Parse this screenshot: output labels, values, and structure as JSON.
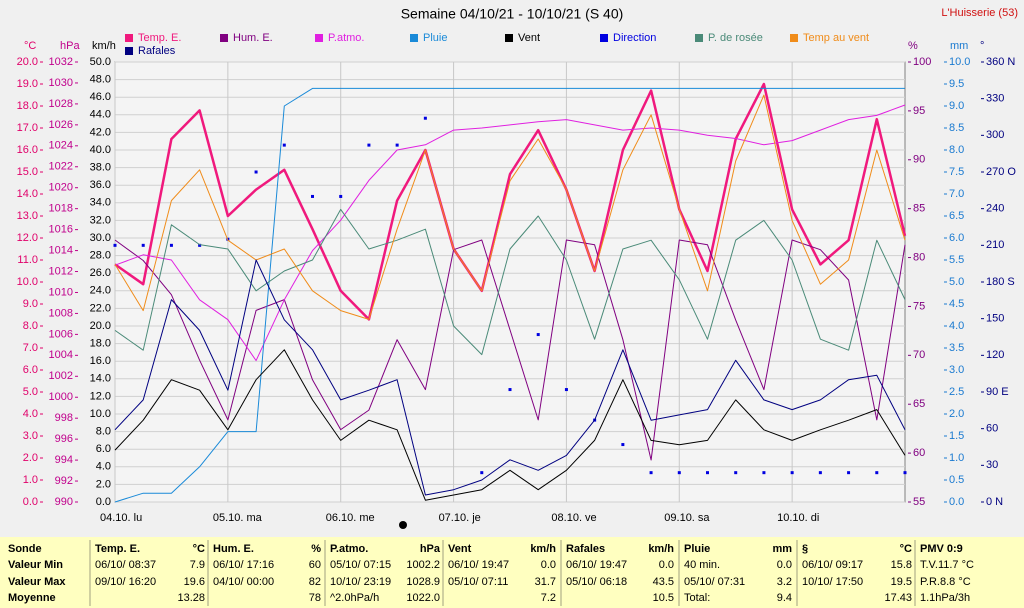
{
  "chart_data": {
    "type": "line",
    "title": "Semaine 04/10/21 - 10/10/21 (S 40)",
    "station": "L'Huisserie (53)",
    "xlim": [
      0,
      168
    ],
    "xticks": [
      {
        "value": 0,
        "label": "04.10. lu"
      },
      {
        "value": 24,
        "label": "05.10. ma"
      },
      {
        "value": 48,
        "label": "06.10. me"
      },
      {
        "value": 72,
        "label": "07.10. je"
      },
      {
        "value": 96,
        "label": "08.10. ve"
      },
      {
        "value": 120,
        "label": "09.10. sa"
      },
      {
        "value": 144,
        "label": "10.10. di"
      }
    ],
    "x": [
      0,
      6,
      12,
      18,
      24,
      30,
      36,
      42,
      48,
      54,
      60,
      66,
      72,
      78,
      84,
      90,
      96,
      102,
      108,
      114,
      120,
      126,
      132,
      138,
      144,
      150,
      156,
      162,
      168
    ],
    "axes": [
      {
        "unit": "°C",
        "color": "#e0006a",
        "lim": [
          0,
          20
        ],
        "ticks": [
          {
            "value": 0,
            "label": "0.0"
          },
          {
            "value": 1,
            "label": "1.0"
          },
          {
            "value": 2,
            "label": "2.0"
          },
          {
            "value": 3,
            "label": "3.0"
          },
          {
            "value": 4,
            "label": "4.0"
          },
          {
            "value": 5,
            "label": "5.0"
          },
          {
            "value": 6,
            "label": "6.0"
          },
          {
            "value": 7,
            "label": "7.0"
          },
          {
            "value": 8,
            "label": "8.0"
          },
          {
            "value": 9,
            "label": "9.0"
          },
          {
            "value": 10,
            "label": "10.0"
          },
          {
            "value": 11,
            "label": "11.0"
          },
          {
            "value": 12,
            "label": "12.0"
          },
          {
            "value": 13,
            "label": "13.0"
          },
          {
            "value": 14,
            "label": "14.0"
          },
          {
            "value": 15,
            "label": "15.0"
          },
          {
            "value": 16,
            "label": "16.0"
          },
          {
            "value": 17,
            "label": "17.0"
          },
          {
            "value": 18,
            "label": "18.0"
          },
          {
            "value": 19,
            "label": "19.0"
          },
          {
            "value": 20,
            "label": "20.0"
          }
        ]
      },
      {
        "unit": "hPa",
        "color": "#c0008c",
        "lim": [
          990,
          1032
        ],
        "ticks": [
          990,
          992,
          994,
          996,
          998,
          1000,
          1002,
          1004,
          1006,
          1008,
          1010,
          1012,
          1014,
          1016,
          1018,
          1020,
          1022,
          1024,
          1026,
          1028,
          1030,
          1032
        ]
      },
      {
        "unit": "km/h",
        "color": "#000000",
        "grid": true,
        "lim": [
          0,
          50
        ],
        "ticks": [
          {
            "value": 0,
            "label": "0.0"
          },
          {
            "value": 2,
            "label": "2.0"
          },
          {
            "value": 4,
            "label": "4.0"
          },
          {
            "value": 6,
            "label": "6.0"
          },
          {
            "value": 8,
            "label": "8.0"
          },
          {
            "value": 10,
            "label": "10.0"
          },
          {
            "value": 12,
            "label": "12.0"
          },
          {
            "value": 14,
            "label": "14.0"
          },
          {
            "value": 16,
            "label": "16.0"
          },
          {
            "value": 18,
            "label": "18.0"
          },
          {
            "value": 20,
            "label": "20.0"
          },
          {
            "value": 22,
            "label": "22.0"
          },
          {
            "value": 24,
            "label": "24.0"
          },
          {
            "value": 26,
            "label": "26.0"
          },
          {
            "value": 28,
            "label": "28.0"
          },
          {
            "value": 30,
            "label": "30.0"
          },
          {
            "value": 32,
            "label": "32.0"
          },
          {
            "value": 34,
            "label": "34.0"
          },
          {
            "value": 36,
            "label": "36.0"
          },
          {
            "value": 38,
            "label": "38.0"
          },
          {
            "value": 40,
            "label": "40.0"
          },
          {
            "value": 42,
            "label": "42.0"
          },
          {
            "value": 44,
            "label": "44.0"
          },
          {
            "value": 46,
            "label": "46.0"
          },
          {
            "value": 48,
            "label": "48.0"
          },
          {
            "value": 50,
            "label": "50.0"
          }
        ]
      },
      {
        "unit": "%",
        "color": "#800080",
        "lim": [
          55,
          100
        ],
        "ticks": [
          55,
          60,
          65,
          70,
          75,
          80,
          85,
          90,
          95,
          100
        ]
      },
      {
        "unit": "mm",
        "color": "#1a7ad0",
        "lim": [
          0,
          10
        ],
        "ticks": [
          {
            "value": 0,
            "label": "0.0"
          },
          {
            "value": 0.5,
            "label": "0.5"
          },
          {
            "value": 1,
            "label": "1.0"
          },
          {
            "value": 1.5,
            "label": "1.5"
          },
          {
            "value": 2,
            "label": "2.0"
          },
          {
            "value": 2.5,
            "label": "2.5"
          },
          {
            "value": 3,
            "label": "3.0"
          },
          {
            "value": 3.5,
            "label": "3.5"
          },
          {
            "value": 4,
            "label": "4.0"
          },
          {
            "value": 4.5,
            "label": "4.5"
          },
          {
            "value": 5,
            "label": "5.0"
          },
          {
            "value": 5.5,
            "label": "5.5"
          },
          {
            "value": 6,
            "label": "6.0"
          },
          {
            "value": 6.5,
            "label": "6.5"
          },
          {
            "value": 7,
            "label": "7.0"
          },
          {
            "value": 7.5,
            "label": "7.5"
          },
          {
            "value": 8,
            "label": "8.0"
          },
          {
            "value": 8.5,
            "label": "8.5"
          },
          {
            "value": 9,
            "label": "9.0"
          },
          {
            "value": 9.5,
            "label": "9.5"
          },
          {
            "value": 10,
            "label": "10.0"
          }
        ]
      },
      {
        "unit": "°",
        "color": "#000080",
        "lim": [
          0,
          360
        ],
        "ticks": [
          {
            "value": 0,
            "label": "0 N"
          },
          30,
          60,
          {
            "value": 90,
            "label": "90 E"
          },
          120,
          150,
          {
            "value": 180,
            "label": "180 S"
          },
          210,
          240,
          {
            "value": 270,
            "label": "270 O"
          },
          300,
          330,
          {
            "value": 360,
            "label": "360 N"
          }
        ]
      }
    ],
    "series": [
      {
        "name": "Temp. E.",
        "color": "#f0197d",
        "axis": "°C",
        "width": 2.5,
        "values": [
          10.8,
          9.9,
          16.5,
          17.8,
          13.0,
          14.2,
          15.1,
          12.4,
          9.6,
          8.3,
          13.7,
          16.0,
          11.5,
          9.6,
          14.9,
          16.9,
          14.2,
          10.5,
          16.0,
          18.7,
          13.3,
          10.5,
          16.5,
          19.0,
          13.3,
          10.8,
          11.9,
          17.4,
          12.1
        ]
      },
      {
        "name": "Hum. E.",
        "color": "#800080",
        "axis": "%",
        "width": 1,
        "values": [
          81.8,
          79.7,
          76.2,
          69.5,
          63.4,
          74.6,
          75.7,
          67.5,
          62.4,
          64.4,
          71.6,
          66.5,
          80.8,
          81.8,
          72.6,
          63.4,
          81.8,
          81.3,
          71.6,
          59.3,
          81.8,
          81.3,
          73.6,
          66.5,
          81.8,
          80.8,
          77.7,
          63.4,
          81.3
        ]
      },
      {
        "name": "P.atmo.",
        "color": "#e020e0",
        "axis": "hPa",
        "width": 1,
        "values": [
          1012.6,
          1013.6,
          1013.1,
          1009.3,
          1007.4,
          1003.5,
          1009.3,
          1014.0,
          1016.9,
          1020.7,
          1023.6,
          1024.1,
          1025.5,
          1025.7,
          1026.0,
          1026.3,
          1026.5,
          1026.0,
          1025.5,
          1025.7,
          1025.5,
          1025.0,
          1024.7,
          1024.1,
          1024.5,
          1025.5,
          1026.5,
          1026.9,
          1027.9
        ]
      },
      {
        "name": "Pluie",
        "color": "#1a8ad8",
        "axis": "mm",
        "width": 1,
        "values": [
          0.0,
          0.2,
          0.2,
          0.8,
          1.6,
          1.6,
          9.0,
          9.4,
          9.4,
          9.4,
          9.4,
          9.4,
          9.4,
          9.4,
          9.4,
          9.4,
          9.4,
          9.4,
          9.4,
          9.4,
          9.4,
          9.4,
          9.4,
          9.4,
          9.4,
          9.4,
          9.4,
          9.4,
          9.4
        ]
      },
      {
        "name": "Vent",
        "color": "#000000",
        "axis": "km/h",
        "width": 1,
        "values": [
          5.9,
          9.3,
          13.9,
          12.7,
          8.2,
          13.9,
          17.3,
          11.6,
          7.0,
          9.3,
          8.2,
          0.2,
          0.8,
          1.4,
          3.6,
          1.4,
          3.6,
          7.0,
          13.9,
          7.0,
          6.5,
          7.0,
          11.6,
          8.2,
          7.0,
          8.2,
          9.3,
          10.5,
          5.3
        ]
      },
      {
        "name": "Direction",
        "color": "#0000e0",
        "axis": "°",
        "style": "dots",
        "values": [
          210,
          210,
          210,
          210,
          215,
          270,
          292,
          250,
          250,
          292,
          292,
          314,
          null,
          24,
          92,
          137,
          92,
          67,
          47,
          24,
          24,
          24,
          24,
          24,
          24,
          24,
          24,
          24,
          24
        ]
      },
      {
        "name": "P. de rosée",
        "color": "#4a8a78",
        "axis": "°C",
        "width": 1,
        "values": [
          7.8,
          6.9,
          12.6,
          11.7,
          11.5,
          9.6,
          10.5,
          11.0,
          13.3,
          11.5,
          11.9,
          12.4,
          8.0,
          6.7,
          11.5,
          13.0,
          11.0,
          7.4,
          11.5,
          11.9,
          10.1,
          7.4,
          11.9,
          12.8,
          11.0,
          7.4,
          6.9,
          11.9,
          9.2
        ]
      },
      {
        "name": "Temp au vent",
        "color": "#f08c1a",
        "axis": "°C",
        "width": 1,
        "values": [
          10.8,
          8.7,
          13.7,
          15.1,
          11.9,
          11.0,
          11.5,
          9.6,
          8.7,
          8.3,
          12.4,
          16.0,
          11.5,
          9.6,
          14.6,
          16.5,
          14.2,
          10.5,
          15.1,
          17.6,
          13.3,
          9.6,
          15.5,
          18.5,
          12.8,
          9.9,
          11.0,
          16.0,
          11.9
        ]
      },
      {
        "name": "Rafales",
        "color": "#000080",
        "axis": "km/h",
        "width": 1,
        "values": [
          8.2,
          11.6,
          23.0,
          19.5,
          12.7,
          27.5,
          20.7,
          17.3,
          11.6,
          12.7,
          13.9,
          0.8,
          1.4,
          2.5,
          4.8,
          3.6,
          5.3,
          9.3,
          17.3,
          9.3,
          9.9,
          10.5,
          16.1,
          11.6,
          10.5,
          11.6,
          13.9,
          14.4,
          8.2
        ]
      }
    ]
  },
  "table": {
    "row_headers": [
      "Sonde",
      "Valeur Min",
      "Valeur Max",
      "Moyenne"
    ],
    "columns": [
      {
        "title": "Temp. E.",
        "unit": "°C",
        "rows": [
          {
            "left": "06/10/ 08:37",
            "right": "7.9"
          },
          {
            "left": "09/10/ 16:20",
            "right": "19.6"
          },
          {
            "right": "13.28"
          }
        ]
      },
      {
        "title": "Hum. E.",
        "unit": "%",
        "rows": [
          {
            "left": "06/10/ 17:16",
            "right": "60"
          },
          {
            "left": "04/10/ 00:00",
            "right": "82"
          },
          {
            "right": "78"
          }
        ]
      },
      {
        "title": "P.atmo.",
        "unit": "hPa",
        "rows": [
          {
            "left": "05/10/ 07:15",
            "right": "1002.2"
          },
          {
            "left": "10/10/ 23:19",
            "right": "1028.9"
          },
          {
            "left": "^2.0hPa/h",
            "right": "1022.0"
          }
        ]
      },
      {
        "title": "Vent",
        "unit": "km/h",
        "rows": [
          {
            "left": "06/10/ 19:47",
            "right": "0.0"
          },
          {
            "left": "05/10/ 07:11",
            "right": "31.7"
          },
          {
            "right": "7.2"
          }
        ]
      },
      {
        "title": "Rafales",
        "unit": "km/h",
        "rows": [
          {
            "left": "06/10/ 19:47",
            "right": "0.0"
          },
          {
            "left": "05/10/ 06:18",
            "right": "43.5"
          },
          {
            "right": "10.5"
          }
        ]
      },
      {
        "title": "Pluie",
        "unit": "mm",
        "rows": [
          {
            "left": "40 min.",
            "right": "0.0"
          },
          {
            "left": "05/10/ 07:31",
            "right": "3.2"
          },
          {
            "left": "Total:",
            "right": "9.4"
          }
        ]
      },
      {
        "title": "§",
        "unit": "°C",
        "rows": [
          {
            "left": "06/10/ 09:17",
            "right": "15.8"
          },
          {
            "left": "10/10/ 17:50",
            "right": "19.5"
          },
          {
            "right": "17.43"
          }
        ]
      },
      {
        "title": "PMV 0:9",
        "rows": [
          {
            "left": "T.V.11.7 °C"
          },
          {
            "left": "P.R.8.8 °C"
          },
          {
            "left": "1.1hPa/3h"
          }
        ]
      }
    ]
  }
}
